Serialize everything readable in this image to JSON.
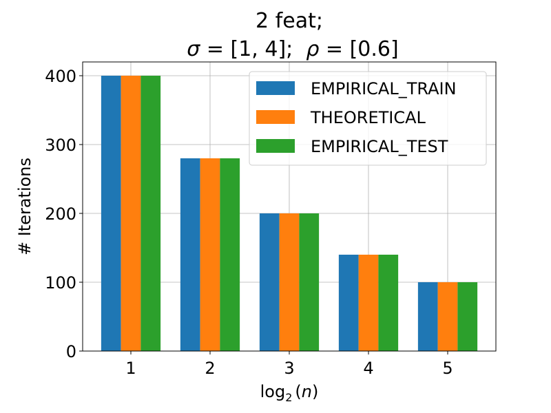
{
  "chart_data": {
    "type": "bar",
    "title_line1": "2 feat;",
    "title_line2": {
      "sigma_symbol": "σ",
      "sigma_value": " = [1, 4];  ",
      "rho_symbol": "ρ",
      "rho_value": " = [0.6]"
    },
    "xlabel": {
      "base": "log",
      "subscript": "2",
      "arg_open": "(",
      "arg_var": "n",
      "arg_close": ")"
    },
    "ylabel": "# Iterations",
    "categories": [
      "1",
      "2",
      "3",
      "4",
      "5"
    ],
    "ylim": [
      0,
      420
    ],
    "yticks": [
      0,
      100,
      200,
      300,
      400
    ],
    "grid": true,
    "legend_position": "top-right",
    "series": [
      {
        "name": "EMPIRICAL_TRAIN",
        "color": "#1f77b4",
        "values": [
          400,
          280,
          200,
          140,
          100
        ]
      },
      {
        "name": "THEORETICAL",
        "color": "#ff7f0e",
        "values": [
          400,
          280,
          200,
          140,
          100
        ]
      },
      {
        "name": "EMPIRICAL_TEST",
        "color": "#2ca02c",
        "values": [
          400,
          280,
          200,
          140,
          100
        ]
      }
    ]
  }
}
